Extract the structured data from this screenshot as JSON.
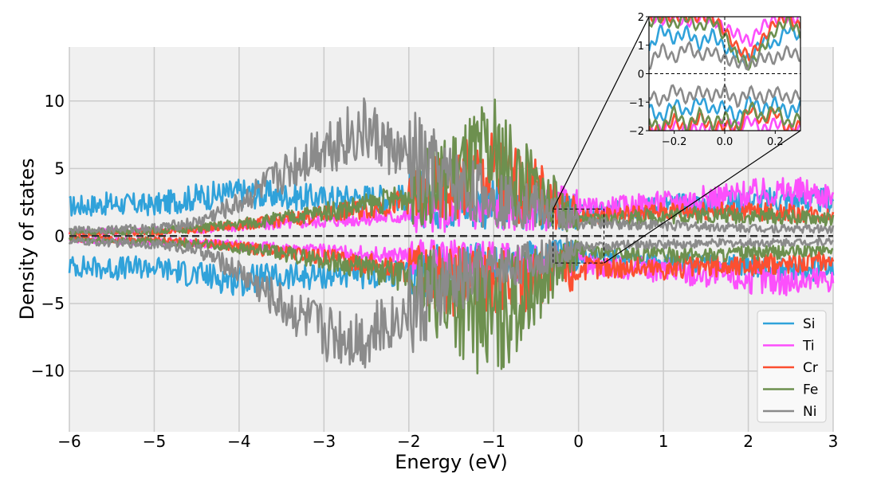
{
  "chart_data": {
    "type": "line",
    "title": "",
    "xlabel": "Energy (eV)",
    "ylabel": "Density of states",
    "xlim": [
      -6,
      3
    ],
    "ylim": [
      -14.5,
      14
    ],
    "xticks": [
      -6,
      -5,
      -4,
      -3,
      -2,
      -1,
      0,
      1,
      2,
      3
    ],
    "xtick_labels": [
      "−6",
      "−5",
      "−4",
      "−3",
      "−2",
      "−1",
      "0",
      "1",
      "2",
      "3"
    ],
    "yticks": [
      -10,
      -5,
      0,
      5,
      10
    ],
    "ytick_labels": [
      "−10",
      "−5",
      "0",
      "5",
      "10"
    ],
    "grid": true,
    "legend_position": "bottom-right",
    "reference_line": {
      "y": 0,
      "style": "dashed"
    },
    "x": [
      -6.0,
      -5.5,
      -5.0,
      -4.5,
      -4.0,
      -3.5,
      -3.0,
      -2.5,
      -2.0,
      -1.5,
      -1.0,
      -0.5,
      0.0,
      0.5,
      1.0,
      1.5,
      2.0,
      2.5,
      3.0
    ],
    "series": [
      {
        "name": "Si",
        "color": "#30a2da",
        "up": [
          2.2,
          2.4,
          2.3,
          2.9,
          3.2,
          3.0,
          2.8,
          2.9,
          2.8,
          2.6,
          2.3,
          2.0,
          1.7,
          1.9,
          2.3,
          2.4,
          2.6,
          2.7,
          2.6
        ],
        "down": [
          -2.2,
          -2.4,
          -2.3,
          -2.9,
          -3.3,
          -3.1,
          -2.9,
          -2.9,
          -2.8,
          -2.4,
          -2.0,
          -1.7,
          -1.4,
          -1.6,
          -1.8,
          -2.1,
          -2.3,
          -2.5,
          -2.4
        ]
      },
      {
        "name": "Ti",
        "color": "#fc4ffc",
        "up": [
          0.3,
          0.35,
          0.4,
          0.5,
          0.7,
          0.9,
          1.1,
          1.3,
          1.5,
          1.7,
          1.9,
          2.1,
          2.0,
          2.2,
          2.5,
          2.8,
          3.1,
          3.3,
          3.0
        ],
        "down": [
          -0.3,
          -0.35,
          -0.4,
          -0.5,
          -0.7,
          -0.9,
          -1.1,
          -1.3,
          -1.5,
          -1.7,
          -1.9,
          -2.0,
          -2.0,
          -2.3,
          -2.6,
          -2.9,
          -3.2,
          -3.4,
          -3.1
        ]
      },
      {
        "name": "Cr",
        "color": "#fc4f30",
        "up": [
          0.2,
          0.25,
          0.3,
          0.5,
          0.8,
          1.2,
          1.6,
          2.0,
          2.6,
          3.8,
          4.5,
          3.2,
          1.4,
          1.6,
          1.8,
          1.9,
          1.8,
          1.7,
          1.5
        ],
        "down": [
          -0.2,
          -0.25,
          -0.3,
          -0.5,
          -0.8,
          -1.2,
          -1.6,
          -2.0,
          -2.6,
          -3.3,
          -3.8,
          -3.0,
          -2.4,
          -2.3,
          -2.4,
          -2.3,
          -2.2,
          -2.0,
          -1.8
        ]
      },
      {
        "name": "Fe",
        "color": "#6d904f",
        "up": [
          0.3,
          0.35,
          0.4,
          0.6,
          0.9,
          1.3,
          1.8,
          2.3,
          3.0,
          4.5,
          6.0,
          3.5,
          1.1,
          1.3,
          1.5,
          1.6,
          1.5,
          1.4,
          1.2
        ],
        "down": [
          -0.3,
          -0.35,
          -0.4,
          -0.6,
          -0.9,
          -1.3,
          -1.8,
          -2.4,
          -3.2,
          -4.8,
          -6.5,
          -3.7,
          -1.1,
          -1.3,
          -1.4,
          -1.4,
          -1.3,
          -1.2,
          -1.0
        ]
      },
      {
        "name": "Ni",
        "color": "#8b8b8b",
        "up": [
          0.4,
          0.5,
          0.6,
          1.0,
          2.4,
          4.5,
          6.8,
          7.8,
          5.5,
          3.8,
          2.8,
          2.2,
          1.0,
          0.9,
          0.8,
          0.7,
          0.6,
          0.55,
          0.5
        ],
        "down": [
          -0.4,
          -0.5,
          -0.6,
          -1.0,
          -2.6,
          -5.0,
          -7.0,
          -7.5,
          -5.5,
          -3.5,
          -2.4,
          -1.8,
          -0.8,
          -0.7,
          -0.6,
          -0.55,
          -0.5,
          -0.45,
          -0.4
        ]
      }
    ],
    "inset": {
      "xlim": [
        -0.3,
        0.3
      ],
      "ylim": [
        -2,
        2
      ],
      "xticks": [
        -0.2,
        0.0,
        0.2
      ],
      "xtick_labels": [
        "−0.2",
        "0.0",
        "0.2"
      ],
      "yticks": [
        -2,
        -1,
        0,
        1,
        2
      ],
      "ytick_labels": [
        "−2",
        "−1",
        "0",
        "1",
        "2"
      ],
      "x": [
        -0.3,
        -0.25,
        -0.2,
        -0.15,
        -0.1,
        -0.05,
        0.0,
        0.05,
        0.1,
        0.15,
        0.2,
        0.25,
        0.3
      ],
      "series": [
        {
          "name": "Si",
          "up": [
            0.8,
            1.6,
            1.2,
            1.5,
            1.0,
            1.4,
            0.9,
            0.7,
            0.5,
            1.2,
            1.0,
            1.6,
            1.3
          ],
          "down": [
            -1.2,
            -1.6,
            -1.0,
            -1.4,
            -0.9,
            -1.3,
            -1.1,
            -1.6,
            -0.9,
            -1.3,
            -1.0,
            -1.4,
            -1.1
          ]
        },
        {
          "name": "Ti",
          "up": [
            2.0,
            1.9,
            2.0,
            1.8,
            2.0,
            1.9,
            1.6,
            1.4,
            1.1,
            1.7,
            1.9,
            2.0,
            1.9
          ],
          "down": [
            -1.9,
            -2.0,
            -1.8,
            -2.0,
            -1.9,
            -2.0,
            -1.7,
            -1.9,
            -1.6,
            -2.0,
            -1.7,
            -1.9,
            -2.0
          ]
        },
        {
          "name": "Cr",
          "up": [
            2.0,
            2.0,
            2.0,
            2.0,
            2.0,
            2.0,
            1.5,
            0.9,
            0.6,
            1.2,
            1.8,
            2.0,
            1.6
          ],
          "down": [
            -2.0,
            -2.0,
            -1.6,
            -2.0,
            -1.5,
            -1.9,
            -1.8,
            -2.0,
            -1.2,
            -1.7,
            -1.3,
            -2.0,
            -1.8
          ]
        },
        {
          "name": "Fe",
          "up": [
            1.8,
            2.0,
            1.7,
            2.0,
            1.6,
            1.9,
            1.3,
            0.6,
            0.3,
            0.9,
            1.5,
            1.9,
            1.4
          ],
          "down": [
            -1.6,
            -2.0,
            -1.3,
            -1.9,
            -1.4,
            -1.8,
            -1.5,
            -1.9,
            -1.1,
            -1.6,
            -1.2,
            -1.8,
            -1.5
          ]
        },
        {
          "name": "Ni",
          "up": [
            0.3,
            0.9,
            0.5,
            1.0,
            0.6,
            0.8,
            0.5,
            0.4,
            0.3,
            0.6,
            0.5,
            0.8,
            0.6
          ],
          "down": [
            -0.7,
            -1.0,
            -0.5,
            -0.9,
            -0.6,
            -0.8,
            -0.6,
            -1.0,
            -0.6,
            -0.9,
            -0.6,
            -0.9,
            -0.7
          ]
        }
      ]
    }
  }
}
